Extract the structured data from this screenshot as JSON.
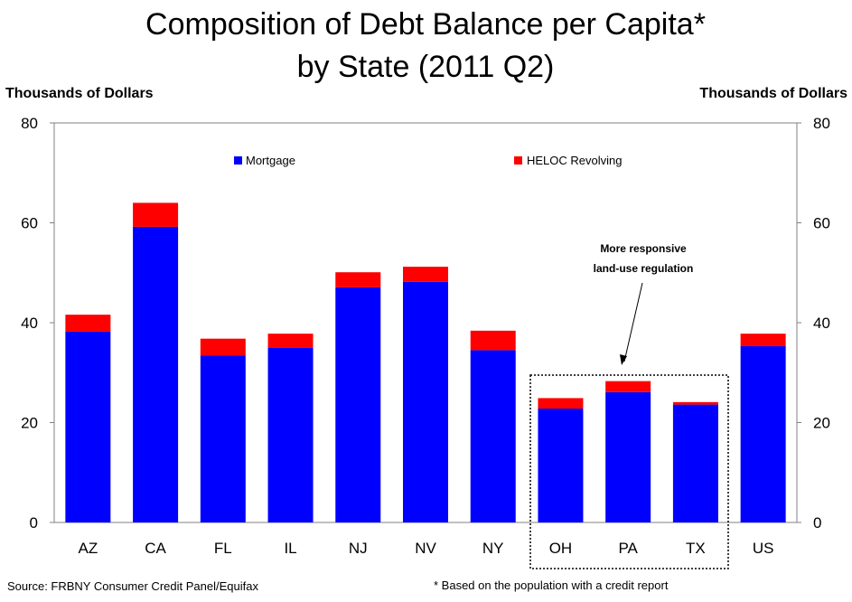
{
  "chart_data": {
    "type": "bar",
    "stacked": true,
    "title_lines": [
      "Composition of Debt Balance per Capita*",
      "by State (2011 Q2)"
    ],
    "ylabel_left": "Thousands of Dollars",
    "ylabel_right": "Thousands of Dollars",
    "ylim": [
      0,
      80
    ],
    "yticks": [
      0,
      20,
      40,
      60,
      80
    ],
    "categories": [
      "AZ",
      "CA",
      "FL",
      "IL",
      "NJ",
      "NV",
      "NY",
      "OH",
      "PA",
      "TX",
      "US"
    ],
    "series": [
      {
        "name": "Mortgage",
        "color": "#0000FF",
        "values": [
          38.2,
          59.2,
          33.4,
          35.0,
          47.1,
          48.2,
          34.5,
          22.8,
          26.1,
          23.6,
          35.3
        ]
      },
      {
        "name": "HELOC Revolving",
        "color": "#FF0000",
        "values": [
          3.4,
          4.8,
          3.4,
          2.8,
          3.0,
          3.0,
          3.9,
          2.1,
          2.2,
          0.5,
          2.5
        ]
      }
    ],
    "legend_position": "top",
    "annotation": {
      "lines": [
        "More responsive",
        "land-use regulation"
      ],
      "points_to": "PA"
    },
    "highlight_group": [
      "OH",
      "PA",
      "TX"
    ],
    "source_note": "Source: FRBNY Consumer Credit Panel/Equifax",
    "footnote": "* Based on the population with a credit report"
  }
}
